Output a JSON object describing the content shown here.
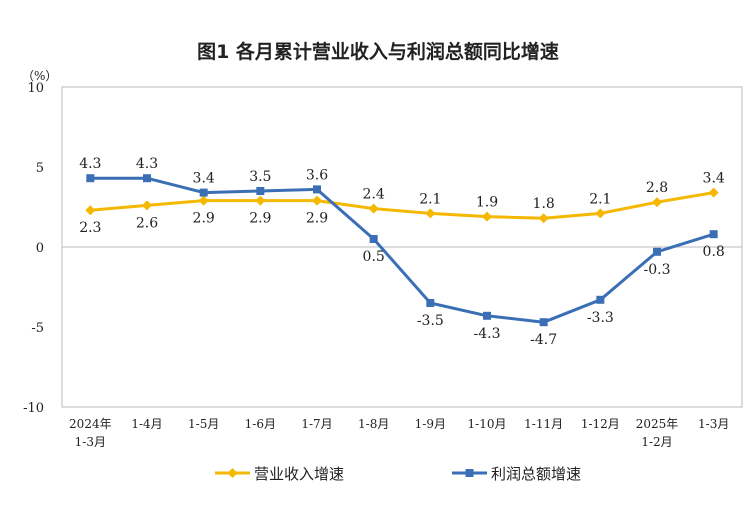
{
  "chart_data": {
    "type": "line",
    "title": "图1  各月累计营业收入与利润总额同比增速",
    "ylabel": "（%）",
    "ylim": [
      -10,
      10
    ],
    "yticks": [
      10,
      5,
      0,
      -5,
      -10
    ],
    "categories": [
      [
        "2024年",
        "1-3月"
      ],
      [
        "1-4月"
      ],
      [
        "1-5月"
      ],
      [
        "1-6月"
      ],
      [
        "1-7月"
      ],
      [
        "1-8月"
      ],
      [
        "1-9月"
      ],
      [
        "1-10月"
      ],
      [
        "1-11月"
      ],
      [
        "1-12月"
      ],
      [
        "2025年",
        "1-2月"
      ],
      [
        "1-3月"
      ]
    ],
    "series": [
      {
        "name": "营业收入增速",
        "color": "#F5B800",
        "marker": "diamond",
        "values": [
          2.3,
          2.6,
          2.9,
          2.9,
          2.9,
          2.4,
          2.1,
          1.9,
          1.8,
          2.1,
          2.8,
          3.4
        ],
        "label_pos": [
          "below",
          "below",
          "below",
          "below",
          "below",
          "above",
          "above",
          "above",
          "above",
          "above",
          "above",
          "above"
        ]
      },
      {
        "name": "利润总额增速",
        "color": "#3A6FB5",
        "marker": "square",
        "values": [
          4.3,
          4.3,
          3.4,
          3.5,
          3.6,
          0.5,
          -3.5,
          -4.3,
          -4.7,
          -3.3,
          -0.3,
          0.8
        ],
        "label_pos": [
          "above",
          "above",
          "above",
          "above",
          "above",
          "below",
          "below",
          "below",
          "below",
          "below",
          "below",
          "below"
        ]
      }
    ],
    "grid": false,
    "legend": "bottom"
  }
}
